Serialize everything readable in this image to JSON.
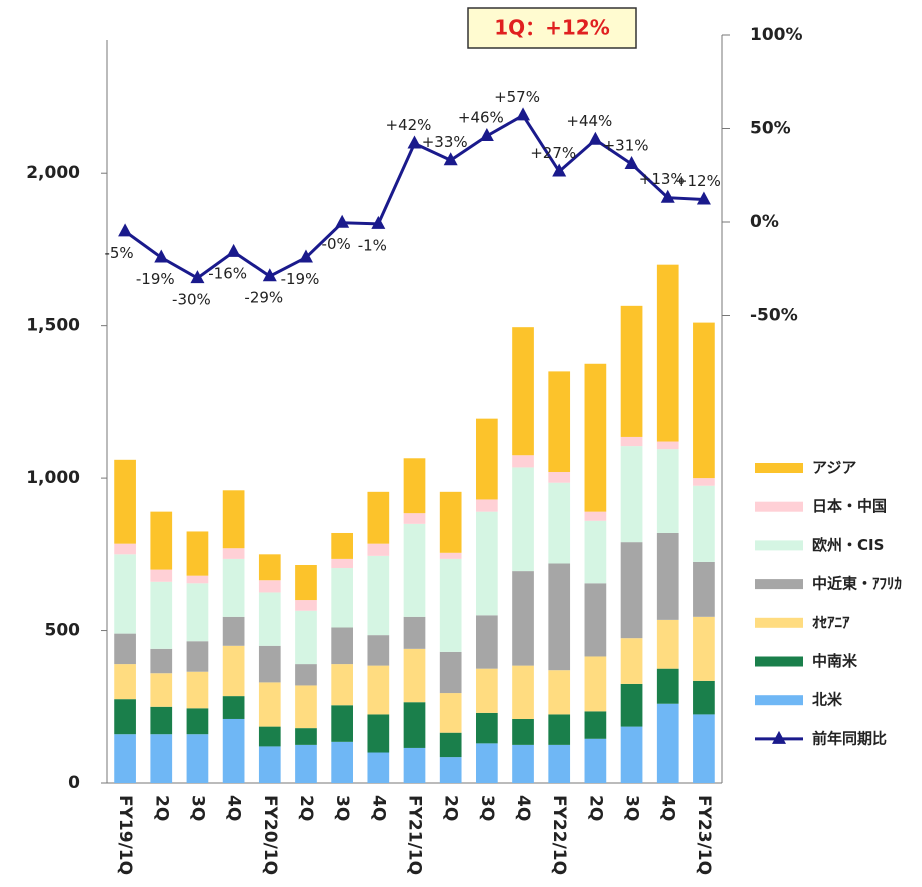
{
  "chart_data": {
    "type": "bar",
    "stacked": true,
    "annotation": "1Q：+12%",
    "categories": [
      "FY19/1Q",
      "2Q",
      "3Q",
      "4Q",
      "FY20/1Q",
      "2Q",
      "3Q",
      "4Q",
      "FY21/1Q",
      "2Q",
      "3Q",
      "4Q",
      "FY22/1Q",
      "2Q",
      "3Q",
      "4Q",
      "FY23/1Q"
    ],
    "series": [
      {
        "name": "北米",
        "color": "#6fb7f5",
        "values": [
          160,
          160,
          160,
          210,
          120,
          125,
          135,
          100,
          115,
          85,
          130,
          125,
          125,
          145,
          185,
          260,
          225
        ]
      },
      {
        "name": "中南米",
        "color": "#1a7f4b",
        "values": [
          115,
          90,
          85,
          75,
          65,
          55,
          120,
          125,
          150,
          80,
          100,
          85,
          100,
          90,
          140,
          115,
          110
        ]
      },
      {
        "name": "ｵｾｱﾆｱ",
        "color": "#ffdc80",
        "values": [
          115,
          110,
          120,
          165,
          145,
          140,
          135,
          160,
          175,
          130,
          145,
          175,
          145,
          180,
          150,
          160,
          210
        ]
      },
      {
        "name": "中近東・ｱﾌﾘｶ",
        "color": "#a6a6a6",
        "values": [
          100,
          80,
          100,
          95,
          120,
          70,
          120,
          100,
          105,
          135,
          175,
          310,
          350,
          240,
          315,
          285,
          180
        ]
      },
      {
        "name": "欧州・CIS",
        "color": "#d5f5e3",
        "values": [
          260,
          220,
          190,
          190,
          175,
          175,
          195,
          260,
          305,
          305,
          340,
          340,
          265,
          205,
          315,
          275,
          250
        ]
      },
      {
        "name": "日本・中国",
        "color": "#ffd0d6",
        "values": [
          35,
          40,
          25,
          35,
          40,
          35,
          30,
          40,
          35,
          20,
          40,
          40,
          35,
          30,
          30,
          25,
          25
        ]
      },
      {
        "name": "アジア",
        "color": "#fcc32b",
        "values": [
          275,
          190,
          145,
          190,
          85,
          115,
          85,
          170,
          180,
          200,
          265,
          420,
          330,
          485,
          430,
          580,
          510
        ]
      },
      {
        "name": "前年同期比",
        "type": "line",
        "axis": "y2",
        "color": "#1a1a8c",
        "values": [
          -5,
          -19,
          -30,
          -16,
          -29,
          -19,
          -0.4,
          -1,
          42,
          33,
          46,
          57,
          27,
          44,
          31,
          13,
          12
        ],
        "value_labels": [
          "-5%",
          "-19%",
          "-30%",
          "-16%",
          "-29%",
          "-19%",
          "-0%",
          "-1%",
          "+42%",
          "+33%",
          "+46%",
          "+57%",
          "+27%",
          "+44%",
          "+31%",
          "+13%",
          "+12%"
        ]
      }
    ],
    "ylim": [
      0,
      2450
    ],
    "yticks": [
      0,
      500,
      {
        "value": 1000,
        "label": "1,000"
      },
      {
        "value": 1500,
        "label": "1,500"
      },
      {
        "value": 2000,
        "label": "2,000"
      }
    ],
    "y2lim": [
      -300,
      100
    ],
    "y2ticks": [
      {
        "value": 100,
        "label": "100%"
      },
      {
        "value": 50,
        "label": "50%"
      },
      {
        "value": 0,
        "label": "0%"
      },
      {
        "value": -50,
        "label": "-50%"
      }
    ]
  }
}
